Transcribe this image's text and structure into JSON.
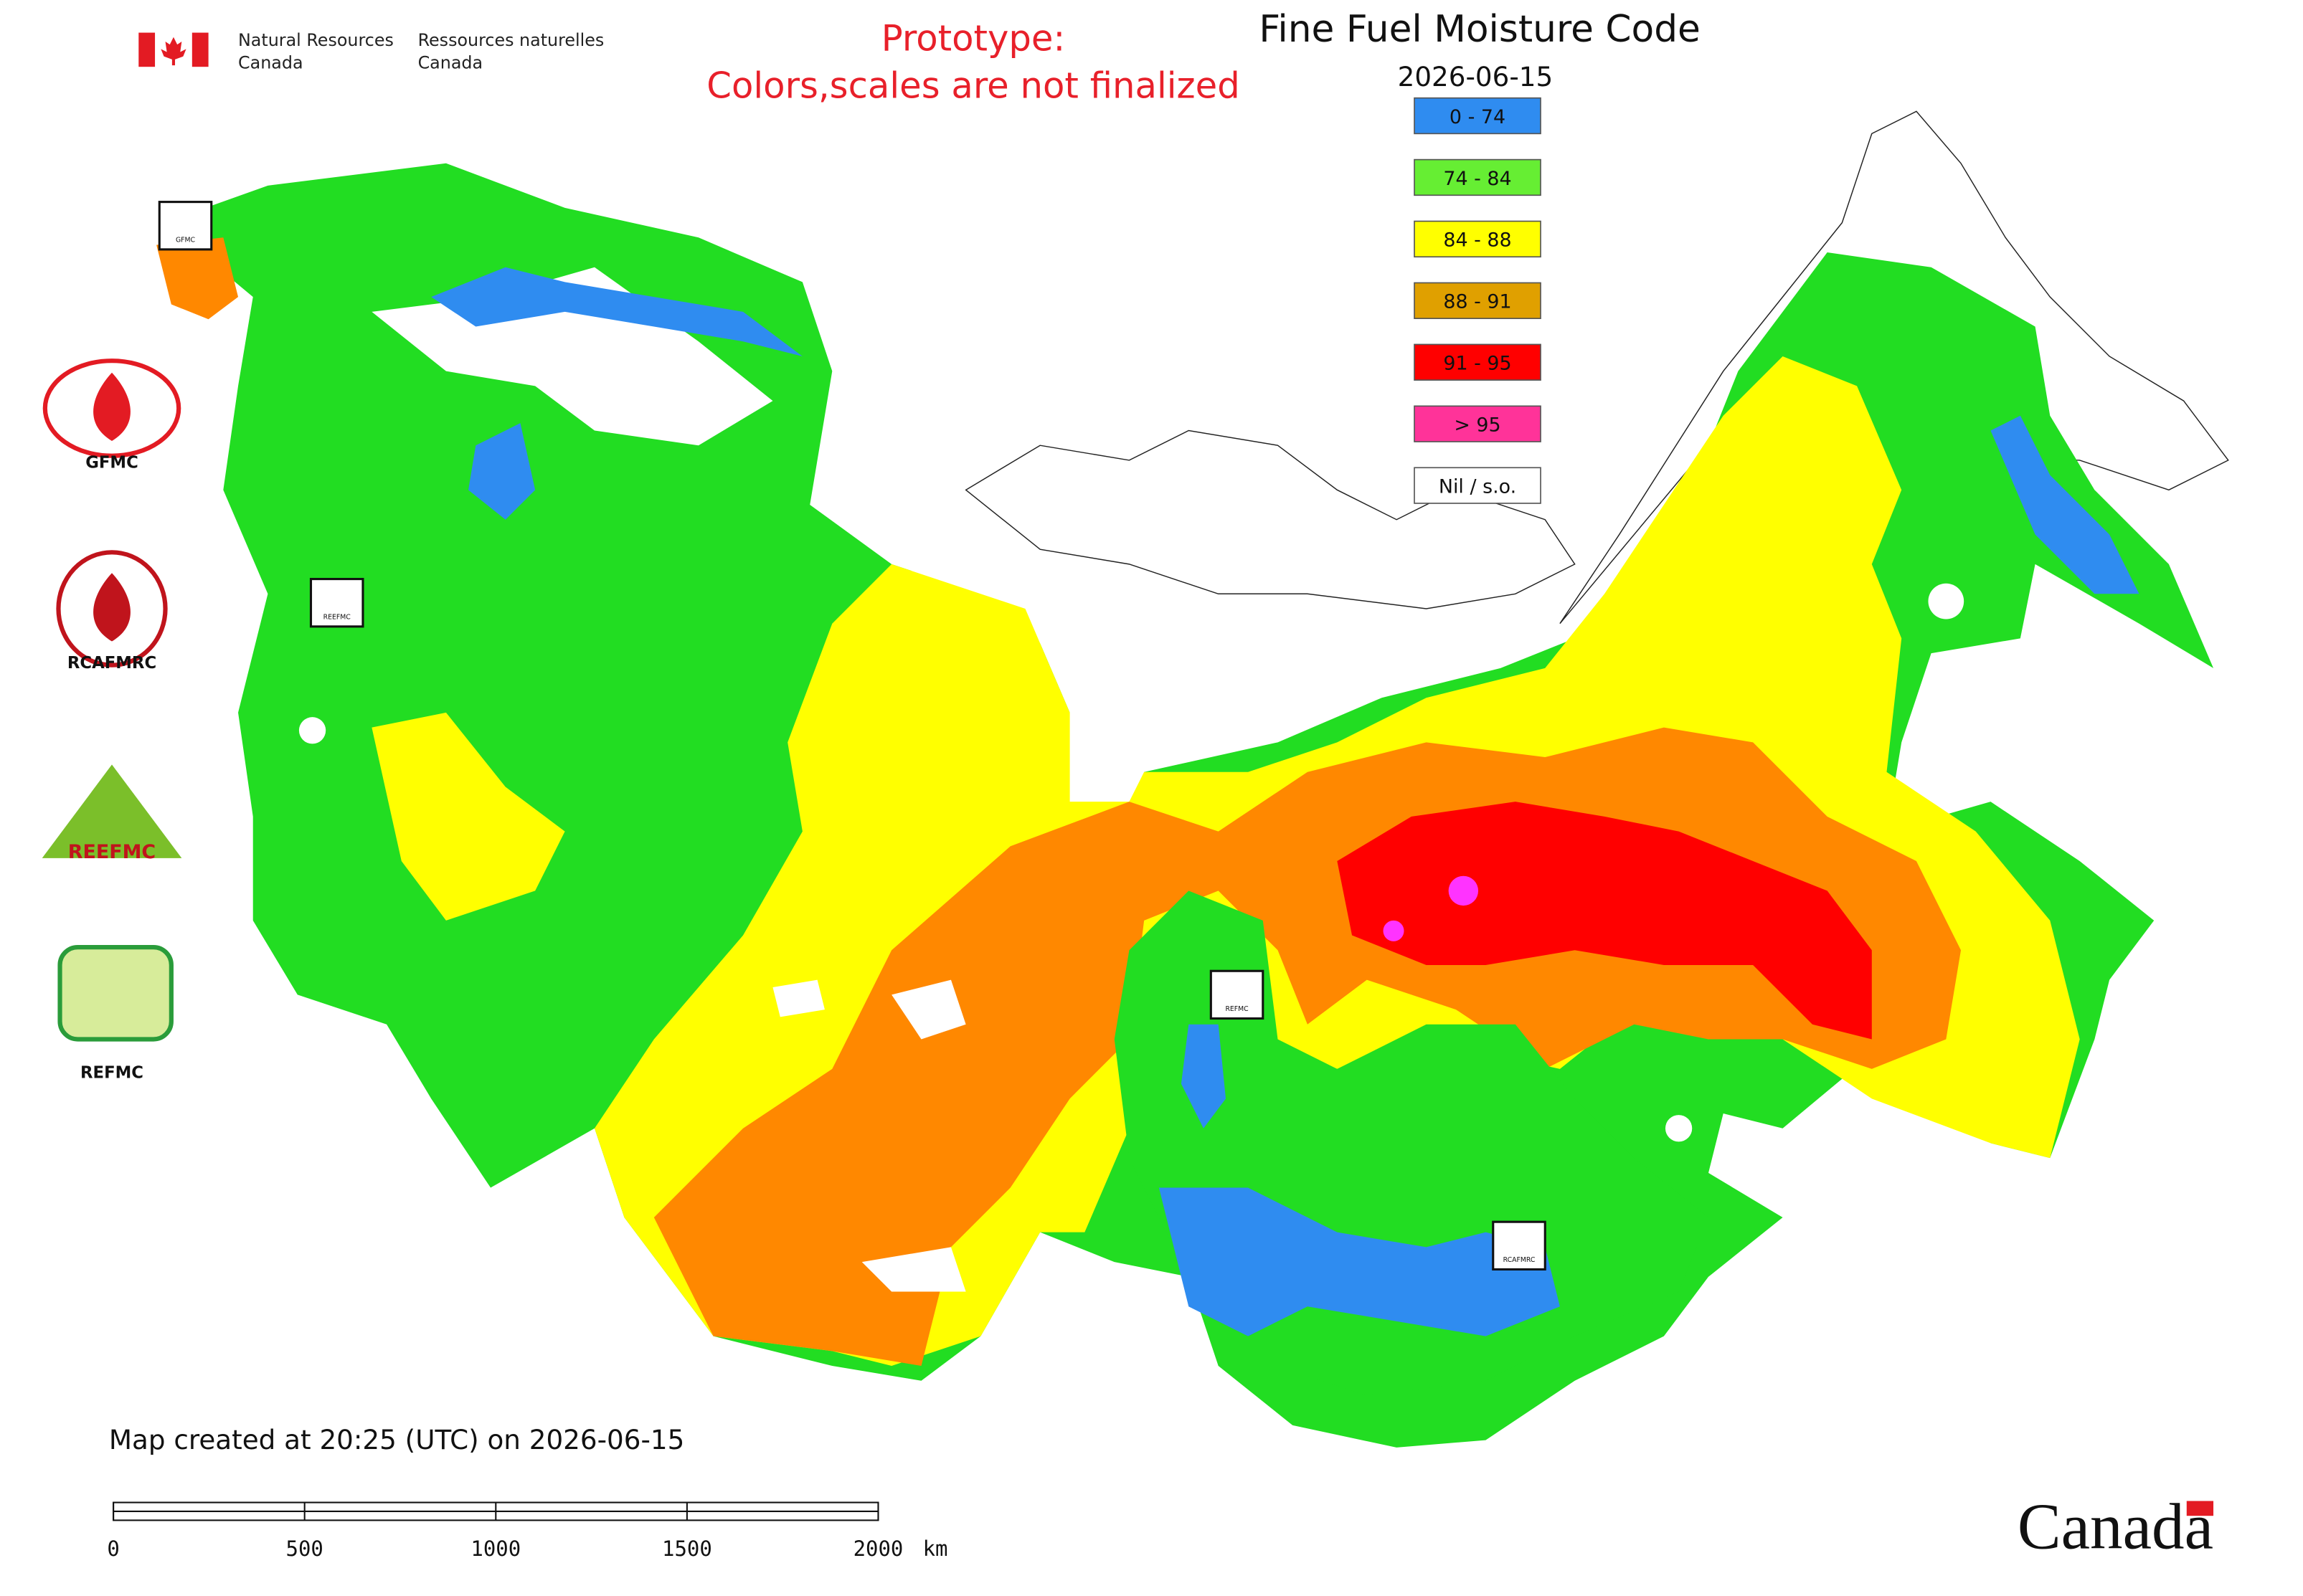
{
  "header": {
    "dept_en_1": "Natural Resources",
    "dept_en_2": "Canada",
    "dept_fr_1": "Ressources naturelles",
    "dept_fr_2": "Canada"
  },
  "notice": {
    "line1": "Prototype:",
    "line2": "Colors,scales are not finalized"
  },
  "map": {
    "title": "Fine Fuel Moisture Code",
    "date": "2026-06-15",
    "legend": [
      {
        "label": "0 - 74",
        "color": "#2f8cf0"
      },
      {
        "label": "74 - 84",
        "color": "#66ee33"
      },
      {
        "label": "84 - 88",
        "color": "#ffff00"
      },
      {
        "label": "88 - 91",
        "color": "#e0a000"
      },
      {
        "label": "91 - 95",
        "color": "#ff0000"
      },
      {
        "label": "> 95",
        "color": "#ff3399"
      },
      {
        "label": "Nil / s.o.",
        "color": "#ffffff"
      }
    ],
    "logos": [
      "GFMC",
      "RCAFMRC",
      "REEFMC",
      "REFMC"
    ],
    "badges": [
      "GFMC",
      "REEFMC",
      "REFMC",
      "RCAFMRC"
    ]
  },
  "footer": {
    "created": "Map created at 20:25 (UTC) on 2026-06-15",
    "scale": {
      "ticks": [
        0,
        500,
        1000,
        1500,
        2000
      ],
      "unit": "km"
    },
    "wordmark": "Canada"
  }
}
